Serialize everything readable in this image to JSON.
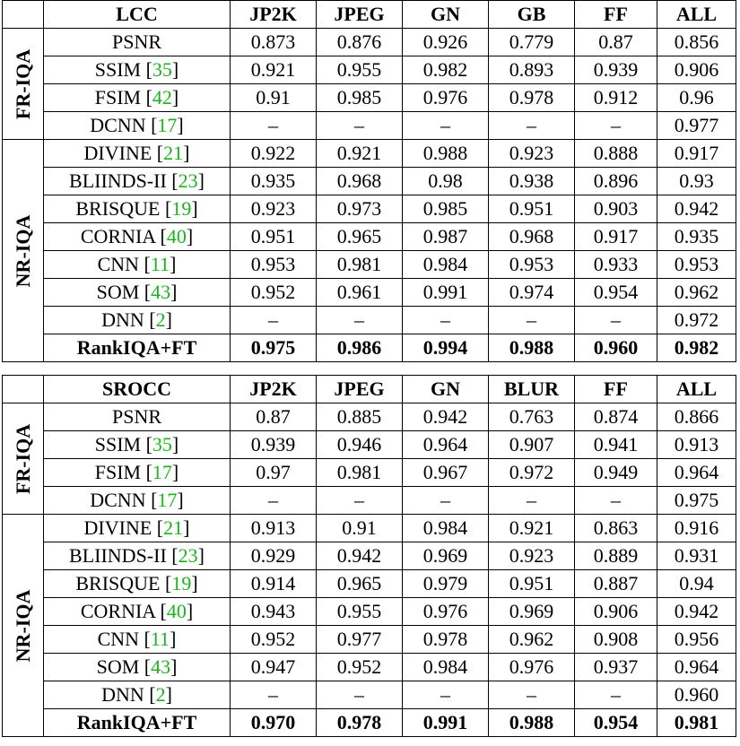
{
  "tables": [
    {
      "header": [
        "LCC",
        "JP2K",
        "JPEG",
        "GN",
        "GB",
        "FF",
        "ALL"
      ],
      "groups": [
        {
          "label": "FR-IQA",
          "rows": [
            {
              "method": "PSNR",
              "ref": "",
              "values": [
                "0.873",
                "0.876",
                "0.926",
                "0.779",
                "0.87",
                "0.856"
              ]
            },
            {
              "method": "SSIM",
              "ref": "35",
              "values": [
                "0.921",
                "0.955",
                "0.982",
                "0.893",
                "0.939",
                "0.906"
              ]
            },
            {
              "method": "FSIM",
              "ref": "42",
              "values": [
                "0.91",
                "0.985",
                "0.976",
                "0.978",
                "0.912",
                "0.96"
              ]
            },
            {
              "method": "DCNN",
              "ref": "17",
              "values": [
                "–",
                "–",
                "–",
                "–",
                "–",
                "0.977"
              ]
            }
          ]
        },
        {
          "label": "NR-IQA",
          "rows": [
            {
              "method": "DIVINE",
              "ref": "21",
              "values": [
                "0.922",
                "0.921",
                "0.988",
                "0.923",
                "0.888",
                "0.917"
              ]
            },
            {
              "method": "BLIINDS-II",
              "ref": "23",
              "values": [
                "0.935",
                "0.968",
                "0.98",
                "0.938",
                "0.896",
                "0.93"
              ]
            },
            {
              "method": "BRISQUE",
              "ref": "19",
              "values": [
                "0.923",
                "0.973",
                "0.985",
                "0.951",
                "0.903",
                "0.942"
              ]
            },
            {
              "method": "CORNIA",
              "ref": "40",
              "values": [
                "0.951",
                "0.965",
                "0.987",
                "0.968",
                "0.917",
                "0.935"
              ]
            },
            {
              "method": "CNN",
              "ref": "11",
              "values": [
                "0.953",
                "0.981",
                "0.984",
                "0.953",
                "0.933",
                "0.953"
              ]
            },
            {
              "method": "SOM",
              "ref": "43",
              "values": [
                "0.952",
                "0.961",
                "0.991",
                "0.974",
                "0.954",
                "0.962"
              ]
            },
            {
              "method": "DNN",
              "ref": "2",
              "values": [
                "–",
                "–",
                "–",
                "–",
                "–",
                "0.972"
              ]
            },
            {
              "method": "RankIQA+FT",
              "ref": "",
              "bold": true,
              "values": [
                "0.975",
                "0.986",
                "0.994",
                "0.988",
                "0.960",
                "0.982"
              ]
            }
          ]
        }
      ]
    },
    {
      "header": [
        "SROCC",
        "JP2K",
        "JPEG",
        "GN",
        "BLUR",
        "FF",
        "ALL"
      ],
      "groups": [
        {
          "label": "FR-IQA",
          "rows": [
            {
              "method": "PSNR",
              "ref": "",
              "values": [
                "0.87",
                "0.885",
                "0.942",
                "0.763",
                "0.874",
                "0.866"
              ]
            },
            {
              "method": "SSIM",
              "ref": "35",
              "values": [
                "0.939",
                "0.946",
                "0.964",
                "0.907",
                "0.941",
                "0.913"
              ]
            },
            {
              "method": "FSIM",
              "ref": "17",
              "values": [
                "0.97",
                "0.981",
                "0.967",
                "0.972",
                "0.949",
                "0.964"
              ]
            },
            {
              "method": "DCNN",
              "ref": "17",
              "values": [
                "–",
                "–",
                "–",
                "–",
                "–",
                "0.975"
              ]
            }
          ]
        },
        {
          "label": "NR-IQA",
          "rows": [
            {
              "method": "DIVINE",
              "ref": "21",
              "values": [
                "0.913",
                "0.91",
                "0.984",
                "0.921",
                "0.863",
                "0.916"
              ]
            },
            {
              "method": "BLIINDS-II",
              "ref": "23",
              "values": [
                "0.929",
                "0.942",
                "0.969",
                "0.923",
                "0.889",
                "0.931"
              ]
            },
            {
              "method": "BRISQUE",
              "ref": "19",
              "values": [
                "0.914",
                "0.965",
                "0.979",
                "0.951",
                "0.887",
                "0.94"
              ]
            },
            {
              "method": "CORNIA",
              "ref": "40",
              "values": [
                "0.943",
                "0.955",
                "0.976",
                "0.969",
                "0.906",
                "0.942"
              ]
            },
            {
              "method": "CNN",
              "ref": "11",
              "values": [
                "0.952",
                "0.977",
                "0.978",
                "0.962",
                "0.908",
                "0.956"
              ]
            },
            {
              "method": "SOM",
              "ref": "43",
              "values": [
                "0.947",
                "0.952",
                "0.984",
                "0.976",
                "0.937",
                "0.964"
              ]
            },
            {
              "method": "DNN",
              "ref": "2",
              "values": [
                "–",
                "–",
                "–",
                "–",
                "–",
                "0.960"
              ]
            },
            {
              "method": "RankIQA+FT",
              "ref": "",
              "bold": true,
              "values": [
                "0.970",
                "0.978",
                "0.991",
                "0.988",
                "0.954",
                "0.981"
              ]
            }
          ]
        }
      ]
    }
  ]
}
